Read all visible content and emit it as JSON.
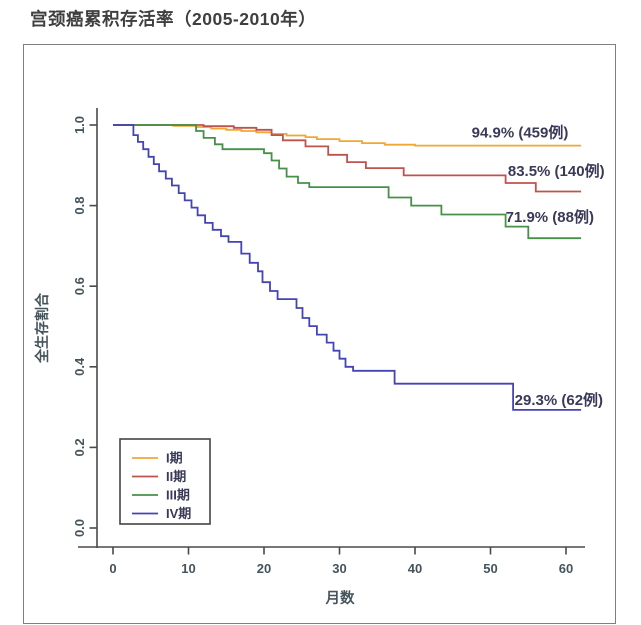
{
  "page": {
    "title": "宫颈癌累积存活率（2005-2010年）"
  },
  "chart_data": {
    "type": "line",
    "subtype": "kaplan-meier-step-survival",
    "title": "宫颈癌累积存活率（2005-2010年）",
    "xlabel": "月数",
    "ylabel": "全生存割合",
    "xlim": [
      0,
      62
    ],
    "ylim": [
      0,
      1.0
    ],
    "xticks": [
      0,
      10,
      20,
      30,
      40,
      50,
      60
    ],
    "yticks": [
      {
        "value": 0,
        "label": "0.0"
      },
      {
        "value": 0.2,
        "label": "0.2"
      },
      {
        "value": 0.4,
        "label": "0.4"
      },
      {
        "value": 0.6,
        "label": "0.6"
      },
      {
        "value": 0.8,
        "label": "0.8"
      },
      {
        "value": 1.0,
        "label": "1.0"
      }
    ],
    "grid": false,
    "legend_position": "bottom-left",
    "colors": {
      "annotation": "#3a3a58",
      "axis": "#4a4a4a",
      "tick_label": "#45545c",
      "figure_border": "#7f7f7f",
      "legend_border": "#444444"
    },
    "series": [
      {
        "name": "I期",
        "color": "#F0A832",
        "end_label": "94.9% (459例)",
        "end_label_at": [
          47.5,
          0.981
        ],
        "points": [
          [
            0,
            1
          ],
          [
            8,
            0.998
          ],
          [
            11,
            0.995
          ],
          [
            13,
            0.991
          ],
          [
            15,
            0.988
          ],
          [
            17,
            0.985
          ],
          [
            19,
            0.982
          ],
          [
            21,
            0.978
          ],
          [
            23,
            0.974
          ],
          [
            25.5,
            0.97
          ],
          [
            27,
            0.965
          ],
          [
            30,
            0.96
          ],
          [
            33,
            0.955
          ],
          [
            36,
            0.951
          ],
          [
            40,
            0.949
          ],
          [
            62,
            0.949
          ]
        ]
      },
      {
        "name": "II期",
        "color": "#BE534E",
        "end_label": "83.5% (140例)",
        "end_label_at": [
          52.3,
          0.886
        ],
        "points": [
          [
            0,
            1
          ],
          [
            12,
            0.997
          ],
          [
            16,
            0.993
          ],
          [
            19,
            0.988
          ],
          [
            21,
            0.975
          ],
          [
            22.5,
            0.962
          ],
          [
            25.5,
            0.947
          ],
          [
            28.5,
            0.926
          ],
          [
            31,
            0.908
          ],
          [
            33.5,
            0.893
          ],
          [
            38.5,
            0.875
          ],
          [
            52,
            0.856
          ],
          [
            56,
            0.835
          ],
          [
            62,
            0.835
          ]
        ]
      },
      {
        "name": "III期",
        "color": "#479048",
        "end_label": "71.9% (88例)",
        "end_label_at": [
          52,
          0.772
        ],
        "points": [
          [
            0,
            1
          ],
          [
            11,
            0.985
          ],
          [
            12,
            0.968
          ],
          [
            13.5,
            0.952
          ],
          [
            14.5,
            0.94
          ],
          [
            20,
            0.93
          ],
          [
            21,
            0.912
          ],
          [
            22,
            0.892
          ],
          [
            23,
            0.872
          ],
          [
            24.5,
            0.856
          ],
          [
            26,
            0.846
          ],
          [
            36.5,
            0.82
          ],
          [
            39.5,
            0.8
          ],
          [
            43.5,
            0.778
          ],
          [
            52,
            0.748
          ],
          [
            55,
            0.719
          ],
          [
            62,
            0.719
          ]
        ]
      },
      {
        "name": "IV期",
        "color": "#4444B4",
        "end_label": "29.3% (62例)",
        "end_label_at": [
          53.2,
          0.318
        ],
        "points": [
          [
            0,
            1
          ],
          [
            2.7,
            0.975
          ],
          [
            3.3,
            0.958
          ],
          [
            4,
            0.94
          ],
          [
            4.7,
            0.921
          ],
          [
            5.4,
            0.903
          ],
          [
            6.1,
            0.885
          ],
          [
            7,
            0.867
          ],
          [
            7.8,
            0.85
          ],
          [
            8.7,
            0.831
          ],
          [
            9.5,
            0.813
          ],
          [
            10.4,
            0.795
          ],
          [
            11.2,
            0.776
          ],
          [
            12.2,
            0.757
          ],
          [
            13.2,
            0.74
          ],
          [
            14.3,
            0.724
          ],
          [
            15.3,
            0.71
          ],
          [
            17,
            0.681
          ],
          [
            18.1,
            0.658
          ],
          [
            19.2,
            0.637
          ],
          [
            19.8,
            0.61
          ],
          [
            20.8,
            0.588
          ],
          [
            21.8,
            0.568
          ],
          [
            24.3,
            0.546
          ],
          [
            25.1,
            0.521
          ],
          [
            26,
            0.501
          ],
          [
            27,
            0.48
          ],
          [
            28.3,
            0.46
          ],
          [
            29.2,
            0.44
          ],
          [
            30,
            0.42
          ],
          [
            30.8,
            0.4
          ],
          [
            31.8,
            0.39
          ],
          [
            37.3,
            0.358
          ],
          [
            53,
            0.293
          ],
          [
            62,
            0.293
          ]
        ]
      }
    ]
  }
}
